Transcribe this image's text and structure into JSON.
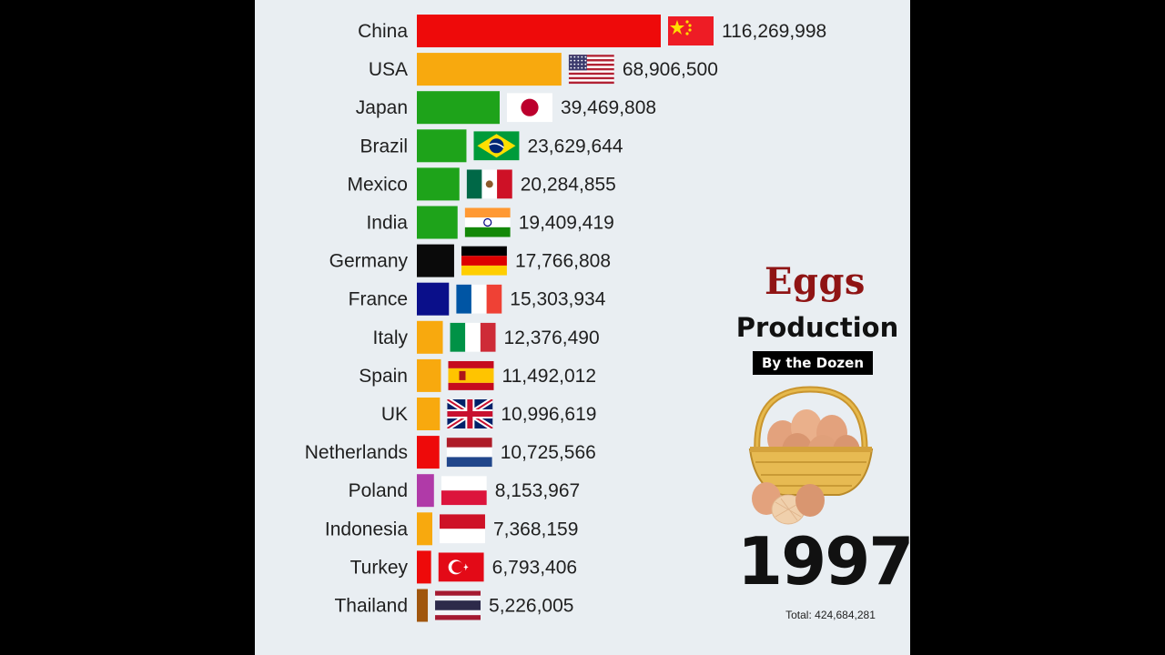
{
  "title": {
    "line1": "Eggs",
    "line2": "Production",
    "subtitle": "By the Dozen"
  },
  "year": "1997",
  "total_text": "Total: 424,684,281",
  "colors": {
    "background": "#e9eef2",
    "title_red": "#8f1414"
  },
  "chart_data": {
    "type": "bar",
    "orientation": "horizontal",
    "year": 1997,
    "categories": [
      "China",
      "USA",
      "Japan",
      "Brazil",
      "Mexico",
      "India",
      "Germany",
      "France",
      "Italy",
      "Spain",
      "UK",
      "Netherlands",
      "Poland",
      "Indonesia",
      "Turkey",
      "Thailand"
    ],
    "values": [
      116269998,
      68906500,
      39469808,
      23629644,
      20284855,
      19409419,
      17766808,
      15303934,
      12376490,
      11492012,
      10996619,
      10725566,
      8153967,
      7368159,
      6793406,
      5226005
    ],
    "value_labels": [
      "116,269,998",
      "68,906,500",
      "39,469,808",
      "23,629,644",
      "20,284,855",
      "19,409,419",
      "17,766,808",
      "15,303,934",
      "12,376,490",
      "11,492,012",
      "10,996,619",
      "10,725,566",
      "8,153,967",
      "7,368,159",
      "6,793,406",
      "5,226,005"
    ],
    "bar_colors": [
      "#ee0a0a",
      "#f8a90e",
      "#1ea31a",
      "#1ea31a",
      "#1ea31a",
      "#1ea31a",
      "#0a0a0a",
      "#0a0f8a",
      "#f8a90e",
      "#f8a90e",
      "#f8a90e",
      "#ee0a0a",
      "#b03aa8",
      "#f8a90e",
      "#ee0a0a",
      "#a0560e"
    ],
    "flags": [
      "china-flag",
      "usa-flag",
      "japan-flag",
      "brazil-flag",
      "mexico-flag",
      "india-flag",
      "germany-flag",
      "france-flag",
      "italy-flag",
      "spain-flag",
      "uk-flag",
      "netherlands-flag",
      "poland-flag",
      "indonesia-flag",
      "turkey-flag",
      "thailand-flag"
    ],
    "xlim": [
      0,
      116269998
    ],
    "grid": false,
    "legend": "none"
  }
}
